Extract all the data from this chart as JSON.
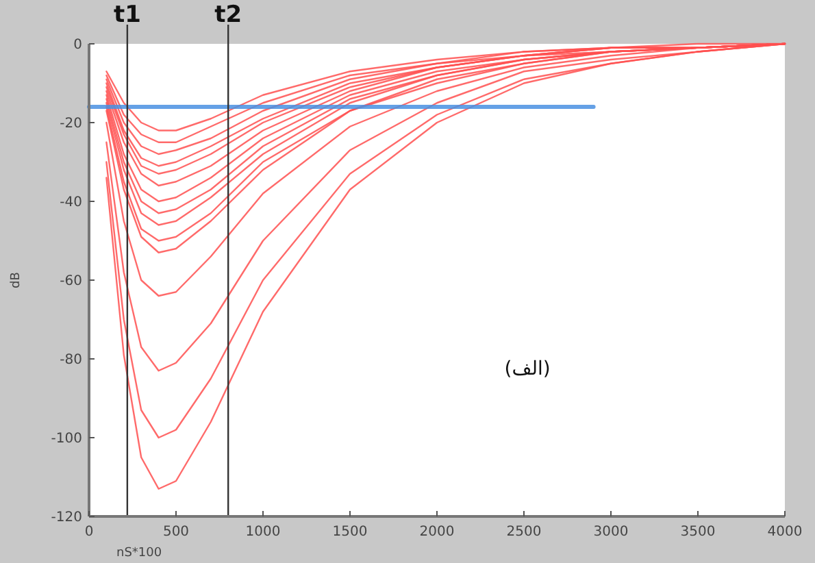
{
  "chart_data": {
    "type": "line",
    "xlabel": "nS*100",
    "ylabel": "dB",
    "x": [
      100,
      200,
      300,
      400,
      500,
      700,
      1000,
      1500,
      2000,
      2500,
      3000,
      3500,
      4000
    ],
    "xlim": [
      0,
      4000
    ],
    "ylim": [
      -120,
      0
    ],
    "xticks": [
      0,
      500,
      1000,
      1500,
      2000,
      2500,
      3000,
      3500,
      4000
    ],
    "yticks": [
      0,
      -20,
      -40,
      -60,
      -80,
      -100,
      -120
    ],
    "grid": false,
    "marker": "none",
    "line_style": "solid",
    "annotations": [
      "(الف)"
    ],
    "ref_lines": [
      {
        "axis": "x",
        "value": 220,
        "label": "t1",
        "color": "#333333"
      },
      {
        "axis": "x",
        "value": 800,
        "label": "t2",
        "color": "#333333"
      }
    ],
    "series": [
      {
        "color": "#ff5050",
        "values": [
          -7,
          -15,
          -20,
          -22,
          -22,
          -19,
          -13,
          -7,
          -4,
          -2,
          -1,
          0,
          0
        ]
      },
      {
        "color": "#ff5050",
        "values": [
          -8,
          -18,
          -23,
          -25,
          -25,
          -21,
          -15,
          -8,
          -5,
          -2,
          -1,
          -1,
          0
        ]
      },
      {
        "color": "#ff5050",
        "values": [
          -9,
          -20,
          -26,
          -28,
          -27,
          -24,
          -17,
          -9,
          -5,
          -3,
          -1,
          -1,
          0
        ]
      },
      {
        "color": "#ff5050",
        "values": [
          -10,
          -22,
          -29,
          -31,
          -30,
          -26,
          -19,
          -10,
          -6,
          -3,
          -1,
          -1,
          0
        ]
      },
      {
        "color": "#ff5050",
        "values": [
          -11,
          -23,
          -31,
          -33,
          -32,
          -28,
          -20,
          -11,
          -6,
          -3,
          -1,
          -1,
          0
        ]
      },
      {
        "color": "#ff5050",
        "values": [
          -12,
          -25,
          -33,
          -36,
          -35,
          -31,
          -22,
          -12,
          -6,
          -3,
          -2,
          -1,
          0
        ]
      },
      {
        "color": "#ff5050",
        "values": [
          -13,
          -28,
          -37,
          -40,
          -39,
          -34,
          -24,
          -13,
          -7,
          -4,
          -2,
          -1,
          0
        ]
      },
      {
        "color": "#ff5050",
        "values": [
          -14,
          -30,
          -40,
          -43,
          -42,
          -37,
          -26,
          -14,
          -8,
          -4,
          -2,
          -1,
          0
        ]
      },
      {
        "color": "#ff5050",
        "values": [
          -15,
          -32,
          -43,
          -46,
          -45,
          -39,
          -28,
          -15,
          -8,
          -4,
          -2,
          -1,
          0
        ]
      },
      {
        "color": "#ff5050",
        "values": [
          -16,
          -35,
          -47,
          -50,
          -49,
          -43,
          -30,
          -17,
          -9,
          -5,
          -2,
          -1,
          0
        ]
      },
      {
        "color": "#ff5050",
        "values": [
          -17,
          -37,
          -49,
          -53,
          -52,
          -45,
          -32,
          -17,
          -10,
          -5,
          -2,
          -1,
          0
        ]
      },
      {
        "color": "#ff5050",
        "values": [
          -20,
          -45,
          -60,
          -64,
          -63,
          -54,
          -38,
          -21,
          -12,
          -6,
          -3,
          -1,
          0
        ]
      },
      {
        "color": "#ff5050",
        "values": [
          -25,
          -58,
          -77,
          -83,
          -81,
          -71,
          -50,
          -27,
          -15,
          -7,
          -4,
          -2,
          0
        ]
      },
      {
        "color": "#ff5050",
        "values": [
          -30,
          -70,
          -93,
          -100,
          -98,
          -85,
          -60,
          -33,
          -18,
          -9,
          -5,
          -2,
          0
        ]
      },
      {
        "color": "#ff5050",
        "values": [
          -34,
          -79,
          -105,
          -113,
          -111,
          -96,
          -68,
          -37,
          -20,
          -10,
          -5,
          -2,
          0
        ]
      },
      {
        "color": "#4a90e2",
        "x": [
          0,
          2900
        ],
        "values": [
          -16,
          -16
        ]
      }
    ]
  }
}
